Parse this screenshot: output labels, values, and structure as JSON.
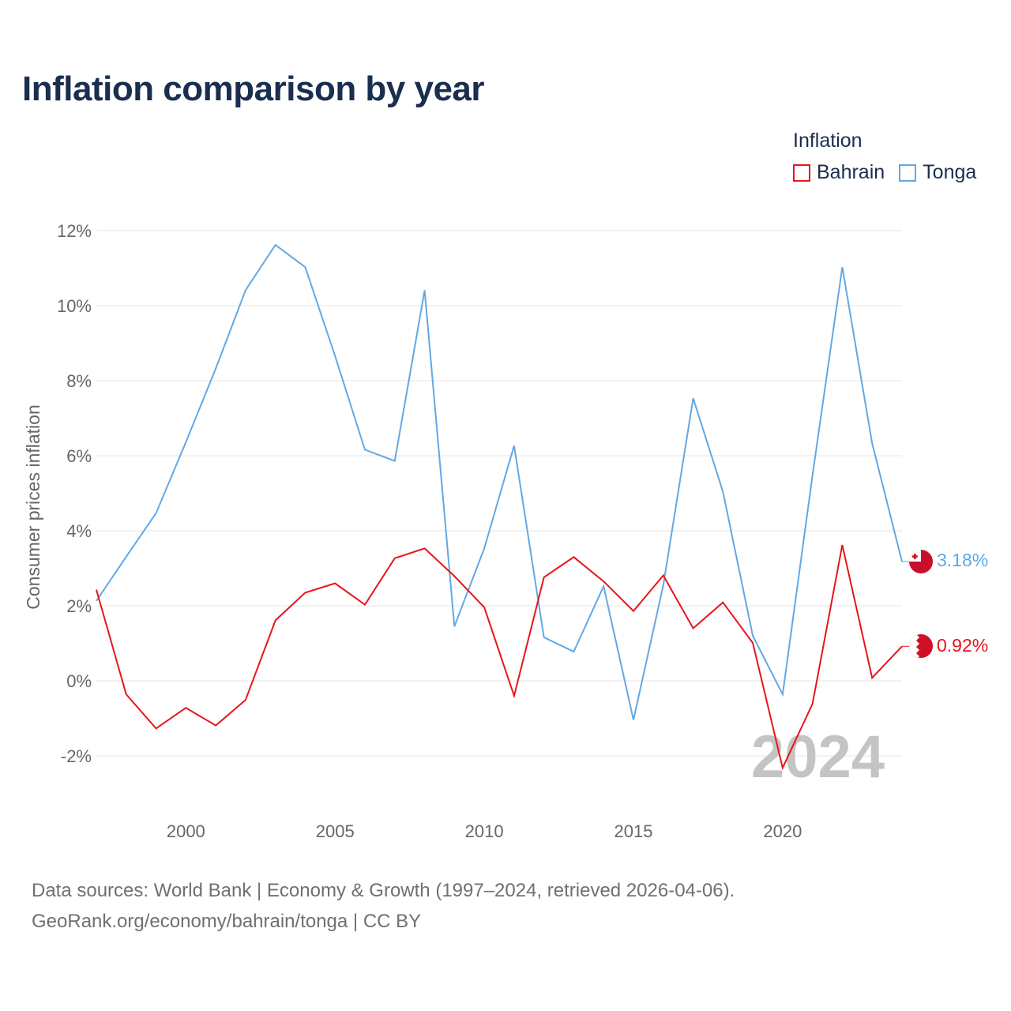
{
  "title": "Inflation comparison by year",
  "legend": {
    "title": "Inflation",
    "items": [
      {
        "name": "Bahrain",
        "color": "#e8141c"
      },
      {
        "name": "Tonga",
        "color": "#62a8e5"
      }
    ]
  },
  "footer": {
    "line1": "Data sources: World Bank | Economy & Growth (1997–2024, retrieved 2026-04-06).",
    "line2": "GeoRank.org/economy/bahrain/tonga | CC BY"
  },
  "chart_data": {
    "type": "line",
    "title": "Inflation comparison by year",
    "xlabel": "",
    "ylabel": "Consumer prices inflation",
    "x": [
      1997,
      1998,
      1999,
      2000,
      2001,
      2002,
      2003,
      2004,
      2005,
      2006,
      2007,
      2008,
      2009,
      2010,
      2011,
      2012,
      2013,
      2014,
      2015,
      2016,
      2017,
      2018,
      2019,
      2020,
      2021,
      2022,
      2023,
      2024
    ],
    "xticks": [
      2000,
      2005,
      2010,
      2015,
      2020
    ],
    "yticks": [
      -2,
      0,
      2,
      4,
      6,
      8,
      10,
      12
    ],
    "ytick_labels": [
      "-2%",
      "0%",
      "2%",
      "4%",
      "6%",
      "8%",
      "10%",
      "12%"
    ],
    "xlim": [
      1997,
      2024
    ],
    "ylim": [
      -3,
      12.6
    ],
    "grid": true,
    "watermark_year": "2024",
    "series": [
      {
        "name": "Bahrain",
        "color": "#e8141c",
        "end_label": "0.92%",
        "values": [
          2.43,
          -0.36,
          -1.27,
          -0.72,
          -1.19,
          -0.51,
          1.61,
          2.35,
          2.6,
          2.03,
          3.27,
          3.53,
          2.79,
          1.96,
          -0.4,
          2.76,
          3.3,
          2.65,
          1.86,
          2.81,
          1.4,
          2.09,
          1.01,
          -2.32,
          -0.61,
          3.62,
          0.08,
          0.92
        ]
      },
      {
        "name": "Tonga",
        "color": "#62a8e5",
        "end_label": "3.18%",
        "values": [
          2.13,
          3.31,
          4.47,
          6.36,
          8.32,
          10.41,
          11.62,
          11.03,
          8.66,
          6.16,
          5.86,
          10.41,
          1.45,
          3.53,
          6.27,
          1.16,
          0.78,
          2.52,
          -1.04,
          2.55,
          7.53,
          5.04,
          1.2,
          -0.36,
          5.48,
          11.03,
          6.33,
          3.18
        ]
      }
    ]
  }
}
